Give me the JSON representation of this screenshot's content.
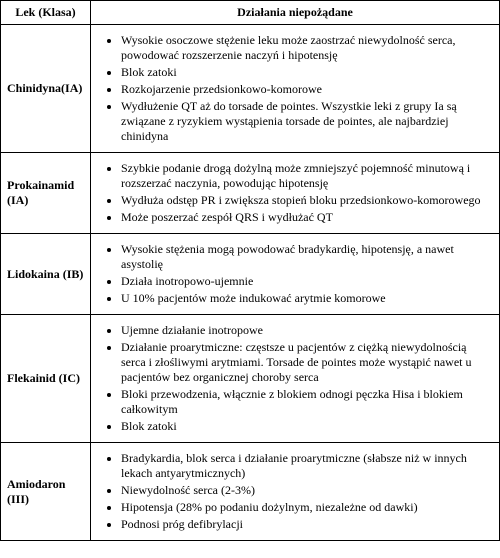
{
  "table": {
    "columns": [
      "Lek (Klasa)",
      "Działania niepożądane"
    ],
    "col_widths": [
      "90px",
      "auto"
    ],
    "header_align": "center",
    "border_color": "#000000",
    "background_color": "#ffffff",
    "font_family": "Times New Roman",
    "font_size_pt": 9,
    "rows": [
      {
        "name": "Chinidyna(IA)",
        "effects": [
          "Wysokie osoczowe stężenie leku może zaostrzać niewydolność serca, powodować rozszerzenie naczyń i hipotensję",
          "Blok zatoki",
          "Rozkojarzenie przedsionkowo-komorowe",
          "Wydłużenie QT aż do torsade de pointes. Wszystkie leki z grupy Ia są związane z ryzykiem wystąpienia torsade de pointes, ale najbardziej chinidyna"
        ]
      },
      {
        "name": "Prokainamid (IA)",
        "effects": [
          "Szybkie podanie drogą dożylną może zmniejszyć pojemność minutową i rozszerzać naczynia, powodując hipotensję",
          "Wydłuża odstęp PR i zwiększa stopień bloku przedsionkowo-komorowego",
          "Może poszerzać zespół QRS i wydłużać QT"
        ]
      },
      {
        "name": "Lidokaina (IB)",
        "effects": [
          "Wysokie stężenia mogą powodować bradykardię, hipotensję, a nawet asystolię",
          "Działa inotropowo-ujemnie",
          "U 10% pacjentów może indukować arytmie komorowe"
        ]
      },
      {
        "name": "Flekainid (IC)",
        "effects": [
          "Ujemne działanie inotropowe",
          "Działanie proarytmiczne: częstsze u pacjentów z ciężką niewydolnością serca i złośliwymi arytmiami. Torsade de pointes może wystąpić nawet u pacjentów bez organicznej choroby serca",
          "Bloki przewodzenia, włącznie z blokiem odnogi pęczka Hisa i blokiem całkowitym",
          "Blok zatoki"
        ]
      },
      {
        "name": "Amiodaron (III)",
        "effects": [
          "Bradykardia, blok serca i działanie proarytmiczne (słabsze niż w innych lekach antyarytmicznych)",
          "Niewydolność serca (2-3%)",
          "Hipotensja (28% po podaniu dożylnym, niezależne od dawki)",
          "Podnosi próg defibrylacji"
        ]
      }
    ]
  }
}
